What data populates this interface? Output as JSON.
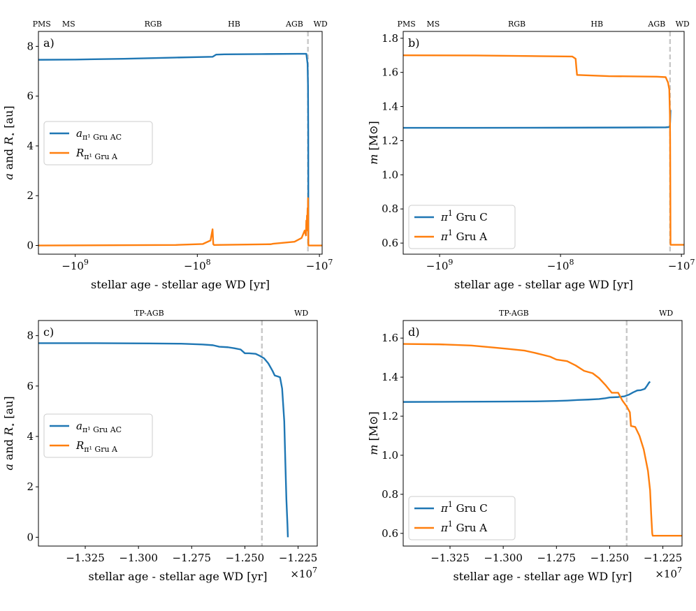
{
  "colors": {
    "blue": "#1f77b4",
    "orange": "#ff7f0e",
    "dashed": "#c8c8c8"
  },
  "chart_data": [
    {
      "type": "line",
      "panel_label": "a)",
      "xlabel": "stellar age - stellar age WD [yr]",
      "ylabel": "a and R⋆ [au]",
      "ylabel_math": {
        "pre": "a",
        "mid": " and ",
        "sym": "R",
        "sub": "⋆",
        "post": " [au]"
      },
      "xscale": "symlog",
      "xlim": [
        -2000000000,
        -9500000
      ],
      "ylim": [
        -0.35,
        8.6
      ],
      "xticks": [
        {
          "value": -1000000000,
          "label_base": "−10",
          "label_exp": "9"
        },
        {
          "value": -100000000,
          "label_base": "−10",
          "label_exp": "8"
        },
        {
          "value": -10000000,
          "label_base": "−10",
          "label_exp": "7"
        }
      ],
      "yticks": [
        0,
        2,
        4,
        6,
        8
      ],
      "vline": -12420000,
      "phases": [
        {
          "label": "PMS",
          "x": -1880000000
        },
        {
          "label": "MS",
          "x": -1130000000
        },
        {
          "label": "RGB",
          "x": -230000000
        },
        {
          "label": "HB",
          "x": -50000000
        },
        {
          "label": "AGB",
          "x": -16000000
        },
        {
          "label": "WD",
          "x": -9800000
        }
      ],
      "legend": [
        {
          "name": "a",
          "sub": "π¹ Gru AC",
          "color": "#1f77b4"
        },
        {
          "name": "R",
          "sub": "π¹ Gru A",
          "color": "#ff7f0e"
        }
      ],
      "series": [
        {
          "name": "a_pi1 Gru AC",
          "color": "#1f77b4",
          "x": [
            -2000000000,
            -1000000000,
            -400000000,
            -150000000,
            -75000000,
            -70000000,
            -60000000,
            -30000000,
            -15000000,
            -12800000,
            -12500000,
            -12400000,
            -12350000,
            -12330000,
            -12320000,
            -12310000
          ],
          "y": [
            7.46,
            7.47,
            7.5,
            7.55,
            7.58,
            7.67,
            7.68,
            7.69,
            7.7,
            7.7,
            7.3,
            6.4,
            4.5,
            2.0,
            0.5,
            0.0
          ]
        },
        {
          "name": "R_pi1 Gru A",
          "color": "#ff7f0e",
          "x": [
            -2000000000,
            -500000000,
            -150000000,
            -90000000,
            -78000000,
            -75000000,
            -74000000,
            -73000000,
            -72000000,
            -50000000,
            -25000000,
            -24000000,
            -16000000,
            -14000000,
            -13200000,
            -12900000,
            -12800000,
            -12700000,
            -12650000,
            -12600000,
            -12500000,
            -12450000,
            -12400000,
            -12350000,
            -12330000,
            -12310000,
            -12300000,
            -9500000
          ],
          "y": [
            0.0,
            0.01,
            0.02,
            0.06,
            0.2,
            0.65,
            0.05,
            0.02,
            0.02,
            0.03,
            0.05,
            0.07,
            0.15,
            0.3,
            0.6,
            0.4,
            1.0,
            0.6,
            1.2,
            0.8,
            1.5,
            0.9,
            1.9,
            1.3,
            0.4,
            0.0,
            0.0,
            0.0
          ]
        }
      ]
    },
    {
      "type": "line",
      "panel_label": "b)",
      "xlabel": "stellar age - stellar age WD [yr]",
      "ylabel": "m [M⊙]",
      "ylabel_math": {
        "pre": "m",
        "mid": "",
        "sym": "",
        "sub": "",
        "post": " [M⊙]"
      },
      "xscale": "symlog",
      "xlim": [
        -2000000000,
        -9500000
      ],
      "ylim": [
        0.535,
        1.84
      ],
      "xticks": [
        {
          "value": -1000000000,
          "label_base": "−10",
          "label_exp": "9"
        },
        {
          "value": -100000000,
          "label_base": "−10",
          "label_exp": "8"
        },
        {
          "value": -10000000,
          "label_base": "−10",
          "label_exp": "7"
        }
      ],
      "yticks": [
        0.6,
        0.8,
        1.0,
        1.2,
        1.4,
        1.6,
        1.8
      ],
      "ytick_labels": [
        "0.6",
        "0.8",
        "1.0",
        "1.2",
        "1.4",
        "1.6",
        "1.8"
      ],
      "vline": -12420000,
      "phases": [
        {
          "label": "PMS",
          "x": -1880000000
        },
        {
          "label": "MS",
          "x": -1130000000
        },
        {
          "label": "RGB",
          "x": -230000000
        },
        {
          "label": "HB",
          "x": -50000000
        },
        {
          "label": "AGB",
          "x": -16000000
        },
        {
          "label": "WD",
          "x": -9800000
        }
      ],
      "legend": [
        {
          "name": "π",
          "sup": "1",
          "text": " Gru C",
          "color": "#1f77b4"
        },
        {
          "name": "π",
          "sup": "1",
          "text": " Gru A",
          "color": "#ff7f0e"
        }
      ],
      "series": [
        {
          "name": "pi1 Gru C",
          "color": "#1f77b4",
          "x": [
            -2000000000,
            -500000000,
            -100000000,
            -30000000,
            -13500000,
            -12600000,
            -12450000,
            -12400000,
            -12350000,
            -12310000
          ],
          "y": [
            1.275,
            1.275,
            1.276,
            1.277,
            1.278,
            1.28,
            1.29,
            1.31,
            1.35,
            1.38
          ]
        },
        {
          "name": "pi1 Gru A",
          "color": "#ff7f0e",
          "x": [
            -2000000000,
            -500000000,
            -150000000,
            -80000000,
            -75000000,
            -74000000,
            -73000000,
            -40000000,
            -16000000,
            -13500000,
            -12900000,
            -12600000,
            -12450000,
            -12400000,
            -12350000,
            -12310000,
            -12300000,
            -9500000
          ],
          "y": [
            1.7,
            1.699,
            1.695,
            1.693,
            1.68,
            1.63,
            1.585,
            1.578,
            1.575,
            1.572,
            1.54,
            1.5,
            1.35,
            1.2,
            0.9,
            0.59,
            0.59,
            0.59
          ]
        }
      ]
    },
    {
      "type": "line",
      "panel_label": "c)",
      "xlabel": "stellar age - stellar age WD [yr]",
      "ylabel": "a and R⋆ [au]",
      "ylabel_math": {
        "pre": "a",
        "mid": " and ",
        "sym": "R",
        "sub": "⋆",
        "post": " [au]"
      },
      "xscale": "linear",
      "offset_label": {
        "base": "×10",
        "exp": "7"
      },
      "xlim": [
        -13.47,
        -12.16
      ],
      "ylim": [
        -0.35,
        8.6
      ],
      "xticks": [
        {
          "value": -13.25,
          "label": "−1.325"
        },
        {
          "value": -13.0,
          "label": "−1.300"
        },
        {
          "value": -12.75,
          "label": "−1.275"
        },
        {
          "value": -12.5,
          "label": "−1.250"
        },
        {
          "value": -12.25,
          "label": "−1.225"
        }
      ],
      "yticks": [
        0,
        2,
        4,
        6,
        8
      ],
      "vline": -12.42,
      "phases": [
        {
          "label": "TP-AGB",
          "x": -12.95
        },
        {
          "label": "WD",
          "x": -12.235
        }
      ],
      "legend": [
        {
          "name": "a",
          "sub": "π¹ Gru AC",
          "color": "#1f77b4"
        },
        {
          "name": "R",
          "sub": "π¹ Gru A",
          "color": "#ff7f0e"
        }
      ],
      "series": [
        {
          "name": "a_pi1 Gru AC",
          "color": "#1f77b4",
          "x": [
            -13.47,
            -13.2,
            -12.95,
            -12.8,
            -12.7,
            -12.65,
            -12.62,
            -12.58,
            -12.55,
            -12.52,
            -12.5,
            -12.48,
            -12.45,
            -12.43,
            -12.41,
            -12.39,
            -12.37,
            -12.36,
            -12.345,
            -12.335,
            -12.325,
            -12.315,
            -12.31,
            -12.305,
            -12.3,
            -12.298
          ],
          "y": [
            7.7,
            7.7,
            7.69,
            7.68,
            7.65,
            7.62,
            7.56,
            7.54,
            7.5,
            7.45,
            7.3,
            7.3,
            7.28,
            7.2,
            7.1,
            6.9,
            6.6,
            6.42,
            6.38,
            6.35,
            5.9,
            4.6,
            3.0,
            1.5,
            0.5,
            0.0
          ]
        }
      ]
    },
    {
      "type": "line",
      "panel_label": "d)",
      "xlabel": "stellar age - stellar age WD [yr]",
      "ylabel": "m [M⊙]",
      "ylabel_math": {
        "pre": "m",
        "mid": "",
        "sym": "",
        "sub": "",
        "post": " [M⊙]"
      },
      "xscale": "linear",
      "offset_label": {
        "base": "×10",
        "exp": "7"
      },
      "xlim": [
        -13.47,
        -12.16
      ],
      "ylim": [
        0.535,
        1.69
      ],
      "xticks": [
        {
          "value": -13.25,
          "label": "−1.325"
        },
        {
          "value": -13.0,
          "label": "−1.300"
        },
        {
          "value": -12.75,
          "label": "−1.275"
        },
        {
          "value": -12.5,
          "label": "−1.250"
        },
        {
          "value": -12.25,
          "label": "−1.225"
        }
      ],
      "yticks": [
        0.6,
        0.8,
        1.0,
        1.2,
        1.4,
        1.6
      ],
      "ytick_labels": [
        "0.6",
        "0.8",
        "1.0",
        "1.2",
        "1.4",
        "1.6"
      ],
      "vline": -12.42,
      "phases": [
        {
          "label": "TP-AGB",
          "x": -12.95
        },
        {
          "label": "WD",
          "x": -12.235
        }
      ],
      "legend": [
        {
          "name": "π",
          "sup": "1",
          "text": " Gru C",
          "color": "#1f77b4"
        },
        {
          "name": "π",
          "sup": "1",
          "text": " Gru A",
          "color": "#ff7f0e"
        }
      ],
      "series": [
        {
          "name": "pi1 Gru C",
          "color": "#1f77b4",
          "x": [
            -13.47,
            -13.2,
            -13.0,
            -12.85,
            -12.75,
            -12.7,
            -12.65,
            -12.6,
            -12.55,
            -12.52,
            -12.5,
            -12.46,
            -12.43,
            -12.41,
            -12.39,
            -12.37,
            -12.355,
            -12.335,
            -12.325,
            -12.315,
            -12.31
          ],
          "y": [
            1.273,
            1.274,
            1.275,
            1.276,
            1.278,
            1.28,
            1.283,
            1.285,
            1.288,
            1.292,
            1.296,
            1.298,
            1.302,
            1.31,
            1.322,
            1.332,
            1.333,
            1.34,
            1.355,
            1.372,
            1.377
          ]
        },
        {
          "name": "pi1 Gru A",
          "color": "#ff7f0e",
          "x": [
            -13.47,
            -13.3,
            -13.15,
            -13.05,
            -12.98,
            -12.9,
            -12.85,
            -12.78,
            -12.75,
            -12.7,
            -12.66,
            -12.62,
            -12.58,
            -12.55,
            -12.52,
            -12.49,
            -12.46,
            -12.44,
            -12.42,
            -12.405,
            -12.4,
            -12.38,
            -12.36,
            -12.34,
            -12.32,
            -12.31,
            -12.305,
            -12.3,
            -12.298,
            -12.16
          ],
          "y": [
            1.57,
            1.568,
            1.562,
            1.552,
            1.545,
            1.536,
            1.524,
            1.505,
            1.49,
            1.482,
            1.46,
            1.432,
            1.42,
            1.395,
            1.36,
            1.32,
            1.32,
            1.28,
            1.25,
            1.22,
            1.15,
            1.145,
            1.1,
            1.03,
            0.92,
            0.82,
            0.7,
            0.6,
            0.588,
            0.588
          ]
        }
      ]
    }
  ]
}
